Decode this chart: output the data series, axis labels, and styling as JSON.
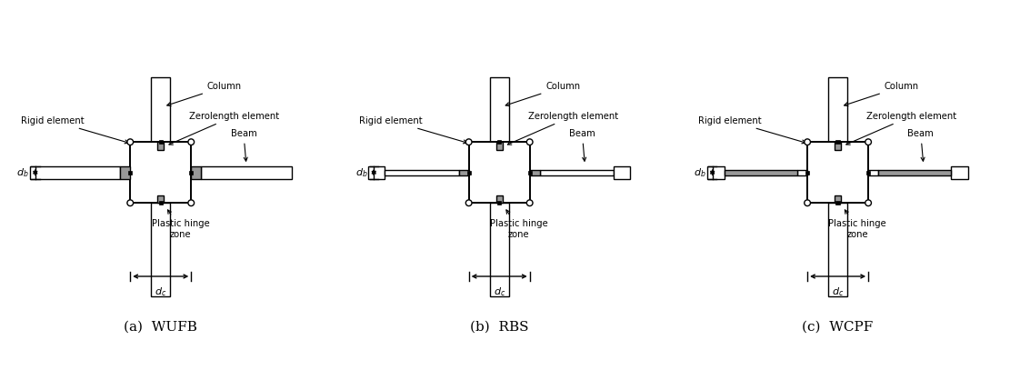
{
  "panels": [
    {
      "label": "(a)  WUFB",
      "beam_type": "WUFB"
    },
    {
      "label": "(b)  RBS",
      "beam_type": "RBS"
    },
    {
      "label": "(c)  WCPF",
      "beam_type": "WCPF"
    }
  ],
  "bg_color": "#ffffff",
  "line_color": "#000000",
  "gray_color": "#999999",
  "label_color": "#000000"
}
